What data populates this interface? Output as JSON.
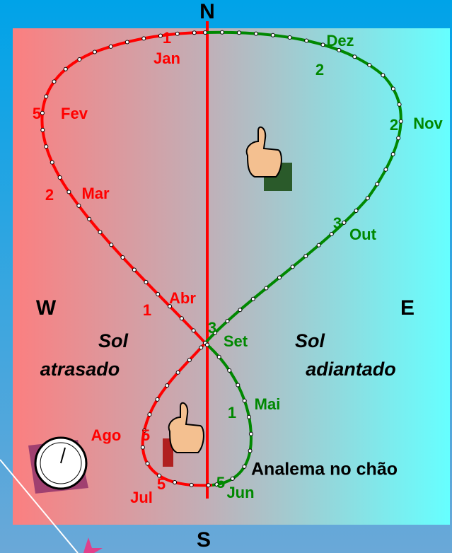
{
  "compass": {
    "north": "N",
    "south": "S",
    "west": "W",
    "east": "E"
  },
  "regions": {
    "behind": [
      "Sol",
      "atrasado"
    ],
    "ahead": [
      "Sol",
      "adiantado"
    ]
  },
  "caption": "Analema no chão",
  "months": [
    {
      "name": "Jan",
      "day": "1"
    },
    {
      "name": "Fev",
      "day": "5"
    },
    {
      "name": "Mar",
      "day": "2"
    },
    {
      "name": "Abr",
      "day": "1"
    },
    {
      "name": "Mai",
      "day": "1"
    },
    {
      "name": "Jun",
      "day": "5"
    },
    {
      "name": "Jul",
      "day": "5"
    },
    {
      "name": "Ago",
      "day": "5"
    },
    {
      "name": "Set",
      "day": "3"
    },
    {
      "name": "Out",
      "day": "3"
    },
    {
      "name": "Nov",
      "day": "2"
    },
    {
      "name": "Dez",
      "day": "2"
    }
  ]
}
